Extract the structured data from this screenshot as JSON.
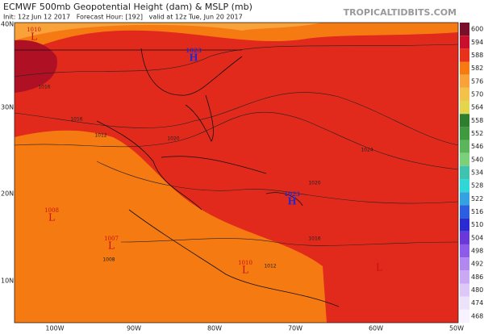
{
  "header": {
    "title": "ECMWF 500mb Geopotential Height (dam) & MSLP (mb)",
    "subtitle": "Init: 12z Jun 12 2017   Forecast Hour: [192]   valid at 12z Tue, Jun 20 2017",
    "source": "TROPICALTIDBITS.COM"
  },
  "axes": {
    "lat": [
      "40N",
      "30N",
      "20N",
      "10N"
    ],
    "lon": [
      "100W",
      "90W",
      "80W",
      "70W",
      "60W",
      "50W"
    ]
  },
  "colorbar": {
    "levels": [
      600,
      594,
      588,
      582,
      576,
      570,
      564,
      558,
      552,
      546,
      540,
      534,
      528,
      522,
      516,
      510,
      504,
      498,
      492,
      486,
      480,
      474,
      468
    ],
    "colors": [
      "#7a0f2a",
      "#c8102e",
      "#e8301c",
      "#f57a12",
      "#f9a23a",
      "#f3c24a",
      "#e4d64c",
      "#2f7d2f",
      "#3f9a3f",
      "#5bb55b",
      "#7cd07c",
      "#3fc3b0",
      "#2fd7d7",
      "#34a2e0",
      "#2b5fe0",
      "#2a2ad0",
      "#6a38d8",
      "#8e5ae8",
      "#b088ef",
      "#c9a9f3",
      "#ddc8f7",
      "#ece2fa",
      "#f7f2fd"
    ]
  },
  "systems": [
    {
      "pressure": "1010",
      "type": "L"
    },
    {
      "pressure": "1023",
      "type": "H"
    },
    {
      "pressure": "1023",
      "type": "H"
    },
    {
      "pressure": "1008",
      "type": "L"
    },
    {
      "pressure": "1007",
      "type": "L"
    },
    {
      "pressure": "1010",
      "type": "L"
    },
    {
      "type": "L"
    }
  ],
  "contour_labels": [
    "1016",
    "1016",
    "1012",
    "1020",
    "1024",
    "1020",
    "1016",
    "1012",
    "1008"
  ]
}
